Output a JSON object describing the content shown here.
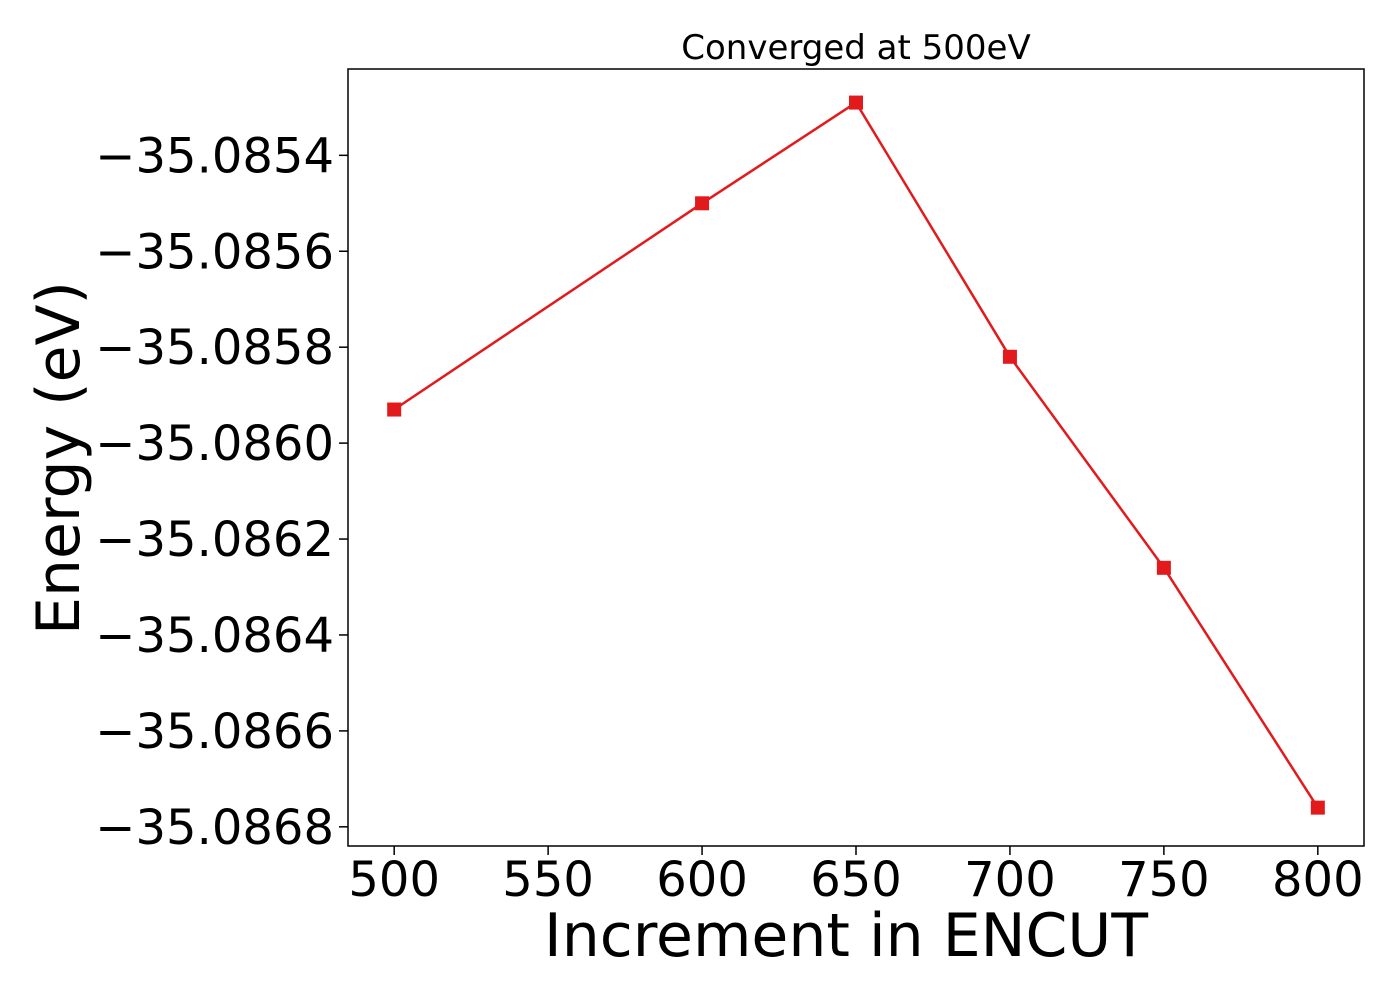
{
  "chart_data": {
    "type": "line",
    "title": "Converged at 500eV",
    "xlabel": "Increment in ENCUT",
    "ylabel": "Energy (eV)",
    "x": [
      500,
      600,
      650,
      700,
      750,
      800
    ],
    "series": [
      {
        "values": [
          -35.08593,
          -35.0855,
          -35.08529,
          -35.08582,
          -35.08626,
          -35.08676
        ],
        "color": "#e31a1c",
        "marker": "square"
      }
    ],
    "xlim": [
      485,
      815
    ],
    "ylim": [
      -35.08684,
      -35.08522
    ],
    "xticks": [
      500,
      550,
      600,
      650,
      700,
      750,
      800
    ],
    "xtick_labels": [
      "500",
      "550",
      "600",
      "650",
      "700",
      "750",
      "800"
    ],
    "yticks": [
      -35.0854,
      -35.0856,
      -35.0858,
      -35.086,
      -35.0862,
      -35.0864,
      -35.0866,
      -35.0868
    ],
    "ytick_labels": [
      "−35.0854",
      "−35.0856",
      "−35.0858",
      "−35.0860",
      "−35.0862",
      "−35.0864",
      "−35.0866",
      "−35.0868"
    ],
    "grid": false,
    "legend": "none"
  }
}
